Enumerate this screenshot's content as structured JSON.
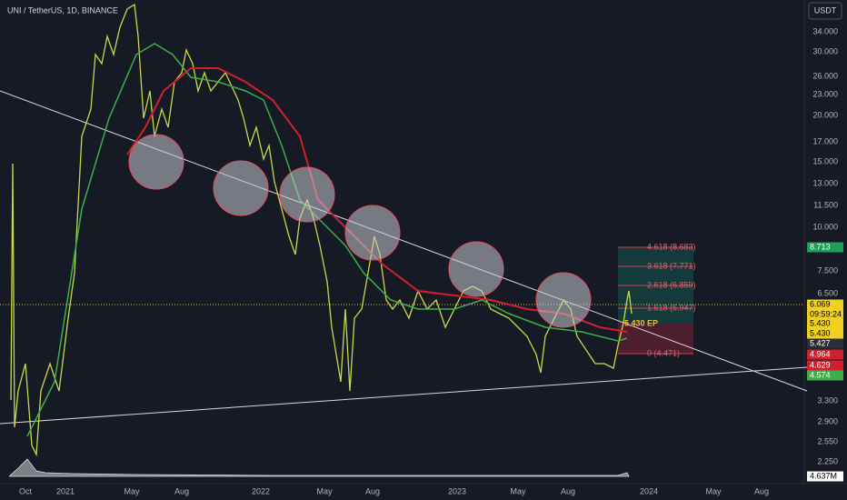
{
  "header": {
    "symbol": "UNI / TetherUS, 1D, BINANCE",
    "currency": "USDT"
  },
  "price_axis": [
    "34.000",
    "30.000",
    "26.000",
    "23.000",
    "20.000",
    "17.000",
    "15.000",
    "13.000",
    "11.500",
    "10.000",
    "7.500",
    "6.500",
    "3.300",
    "2.900",
    "2.550",
    "2.250"
  ],
  "time_axis": [
    "Oct",
    "2021",
    "May",
    "Aug",
    "2022",
    "May",
    "Aug",
    "2023",
    "May",
    "Aug",
    "2024",
    "May",
    "Aug"
  ],
  "price_tags": [
    "8.713",
    "6.069",
    "5.430",
    "5.430",
    "5.427",
    "4.964",
    "4.629",
    "4.574",
    "4.637M"
  ],
  "countdown": "09:59:24",
  "fib_labels": [
    "4.618 (8.683)",
    "3.618 (7.771)",
    "2.618 (6.859)",
    "1.618 (5.947)",
    "0 (4.471)"
  ],
  "entry_label": "5.430 EP"
}
